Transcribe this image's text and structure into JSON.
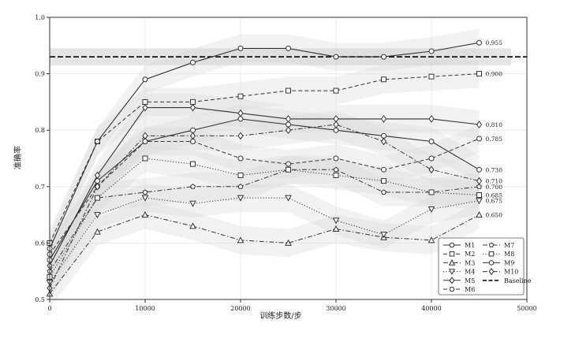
{
  "chart_data": {
    "type": "line",
    "xlabel": "训练步数/步",
    "ylabel": "准确率",
    "xlim": [
      0,
      50000
    ],
    "ylim": [
      0.5,
      1.0
    ],
    "xticks": [
      0,
      10000,
      20000,
      30000,
      40000,
      50000
    ],
    "yticks": [
      0.5,
      0.6,
      0.7,
      0.8,
      0.9,
      1.0
    ],
    "xtick_labels": [
      "0",
      "10000",
      "20000",
      "30000",
      "40000",
      "50000"
    ],
    "ytick_labels": [
      "0.5",
      "0.6",
      "0.7",
      "0.8",
      "0.9",
      "1.0"
    ],
    "grid": true,
    "legend_position": "bottom-right",
    "baseline": {
      "name": "Baseline",
      "value": 0.93,
      "band": [
        0.915,
        0.945
      ]
    },
    "x": [
      0,
      5000,
      10000,
      15000,
      20000,
      25000,
      30000,
      35000,
      40000,
      45000
    ],
    "series": [
      {
        "name": "M1",
        "marker": "circle",
        "dash": "solid",
        "values": [
          0.57,
          0.71,
          0.78,
          0.8,
          0.82,
          0.81,
          0.8,
          0.79,
          0.78,
          0.73
        ],
        "end_label": "0.730"
      },
      {
        "name": "M2",
        "marker": "square",
        "dash": "dashed",
        "values": [
          0.6,
          0.78,
          0.85,
          0.85,
          0.86,
          0.87,
          0.87,
          0.89,
          0.895,
          0.9
        ],
        "end_label": "0.900"
      },
      {
        "name": "M3",
        "marker": "triangle-up",
        "dash": "dashdot",
        "values": [
          0.51,
          0.62,
          0.65,
          0.63,
          0.605,
          0.6,
          0.625,
          0.61,
          0.605,
          0.65
        ],
        "end_label": "0.650"
      },
      {
        "name": "M4",
        "marker": "triangle-down",
        "dash": "dotted",
        "values": [
          0.53,
          0.65,
          0.68,
          0.67,
          0.68,
          0.68,
          0.64,
          0.615,
          0.66,
          0.675
        ],
        "end_label": "0.675"
      },
      {
        "name": "M5",
        "marker": "diamond",
        "dash": "solid",
        "values": [
          0.56,
          0.72,
          0.84,
          0.84,
          0.83,
          0.82,
          0.82,
          0.82,
          0.82,
          0.81
        ],
        "end_label": "0.810"
      },
      {
        "name": "M6",
        "marker": "circle",
        "dash": "dashed",
        "values": [
          0.58,
          0.7,
          0.78,
          0.78,
          0.75,
          0.74,
          0.75,
          0.73,
          0.75,
          0.785
        ],
        "end_label": "0.785"
      },
      {
        "name": "M7",
        "marker": "pentagon",
        "dash": "dashdot",
        "values": [
          0.55,
          0.68,
          0.69,
          0.7,
          0.7,
          0.73,
          0.73,
          0.69,
          0.69,
          0.7
        ],
        "end_label": "0.700"
      },
      {
        "name": "M8",
        "marker": "square",
        "dash": "dotted",
        "values": [
          0.54,
          0.68,
          0.75,
          0.74,
          0.72,
          0.73,
          0.72,
          0.71,
          0.69,
          0.685
        ],
        "end_label": "0.685"
      },
      {
        "name": "M9",
        "marker": "circle",
        "dash": "solid",
        "values": [
          0.59,
          0.78,
          0.89,
          0.92,
          0.945,
          0.945,
          0.93,
          0.93,
          0.94,
          0.955
        ],
        "end_label": "0.955"
      },
      {
        "name": "M10",
        "marker": "diamond",
        "dash": "dashdot",
        "values": [
          0.52,
          0.7,
          0.79,
          0.79,
          0.79,
          0.8,
          0.81,
          0.78,
          0.73,
          0.71
        ],
        "end_label": "0.710"
      }
    ],
    "band_halfwidth": 0.025,
    "colors": {
      "line": "#333333",
      "band": "#d9d9d9",
      "grid": "#e6e6e6"
    }
  }
}
